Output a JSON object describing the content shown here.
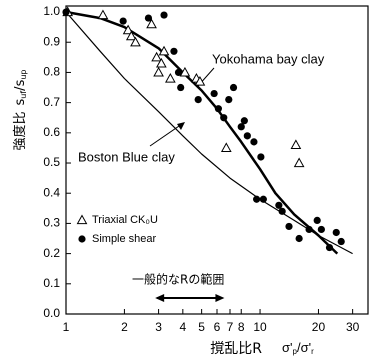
{
  "chart_data": {
    "type": "scatter",
    "xlabel": "撹乱比R",
    "xlabel_symbol": [
      "σ'",
      "p",
      "/σ'",
      "r"
    ],
    "ylabel": "強度比",
    "ylabel_symbol": [
      "s",
      "uf",
      "/s",
      "up"
    ],
    "xscale": "log",
    "xlim": [
      1,
      36
    ],
    "ylim": [
      0,
      1.02
    ],
    "xticks": [
      1,
      2,
      3,
      4,
      5,
      6,
      7,
      8,
      10,
      20,
      30
    ],
    "yticks": [
      {
        "value": 0,
        "label": "0.0"
      },
      0.1,
      0.2,
      0.3,
      0.4,
      0.5,
      0.6,
      0.7,
      0.8,
      0.9,
      {
        "value": 1,
        "label": "1.0"
      }
    ],
    "series": [
      {
        "name": "Triaxial CK₀U",
        "marker": "triangle",
        "color": "#000000",
        "x": [
          1.02,
          1.55,
          2.09,
          2.17,
          2.28,
          2.76,
          2.93,
          3.0,
          3.1,
          3.2,
          3.45,
          4.1,
          4.7,
          4.9,
          6.7,
          15.3,
          15.9
        ],
        "values": [
          1.0,
          0.99,
          0.94,
          0.92,
          0.9,
          0.96,
          0.85,
          0.8,
          0.83,
          0.87,
          0.78,
          0.8,
          0.78,
          0.77,
          0.55,
          0.56,
          0.5
        ]
      },
      {
        "name": "Simple shear",
        "marker": "circle",
        "color": "#000000",
        "x": [
          1.0,
          1.97,
          2.66,
          3.2,
          3.6,
          3.8,
          3.9,
          4.8,
          5.8,
          6.1,
          6.5,
          6.9,
          7.3,
          8.0,
          8.3,
          8.6,
          9.3,
          10.1,
          9.6,
          10.4,
          12.5,
          13.0,
          14.1,
          15.9,
          17.9,
          19.7,
          20.7,
          22.8,
          24.7,
          26.2
        ],
        "values": [
          1.0,
          0.97,
          0.98,
          0.99,
          0.87,
          0.8,
          0.75,
          0.71,
          0.73,
          0.68,
          0.65,
          0.71,
          0.75,
          0.62,
          0.64,
          0.59,
          0.57,
          0.52,
          0.38,
          0.38,
          0.36,
          0.34,
          0.29,
          0.25,
          0.28,
          0.31,
          0.28,
          0.22,
          0.27,
          0.24
        ]
      }
    ],
    "curves": [
      {
        "name": "Yokohama bay clay",
        "width": 2.5,
        "x": [
          1,
          1.5,
          2,
          3,
          4,
          5,
          6,
          7,
          8,
          10,
          12,
          15,
          20,
          25
        ],
        "values": [
          1.0,
          0.98,
          0.95,
          0.88,
          0.8,
          0.74,
          0.68,
          0.62,
          0.57,
          0.48,
          0.4,
          0.33,
          0.26,
          0.2
        ]
      },
      {
        "name": "Boston Blue clay",
        "width": 1.2,
        "x": [
          1,
          1.5,
          2,
          3,
          4,
          5,
          7,
          10,
          15,
          20,
          30
        ],
        "values": [
          1.0,
          0.87,
          0.78,
          0.67,
          0.59,
          0.53,
          0.45,
          0.38,
          0.31,
          0.26,
          0.2
        ]
      }
    ],
    "range_label": "一般的なRの範囲",
    "range": [
      2.95,
      6.4
    ]
  }
}
